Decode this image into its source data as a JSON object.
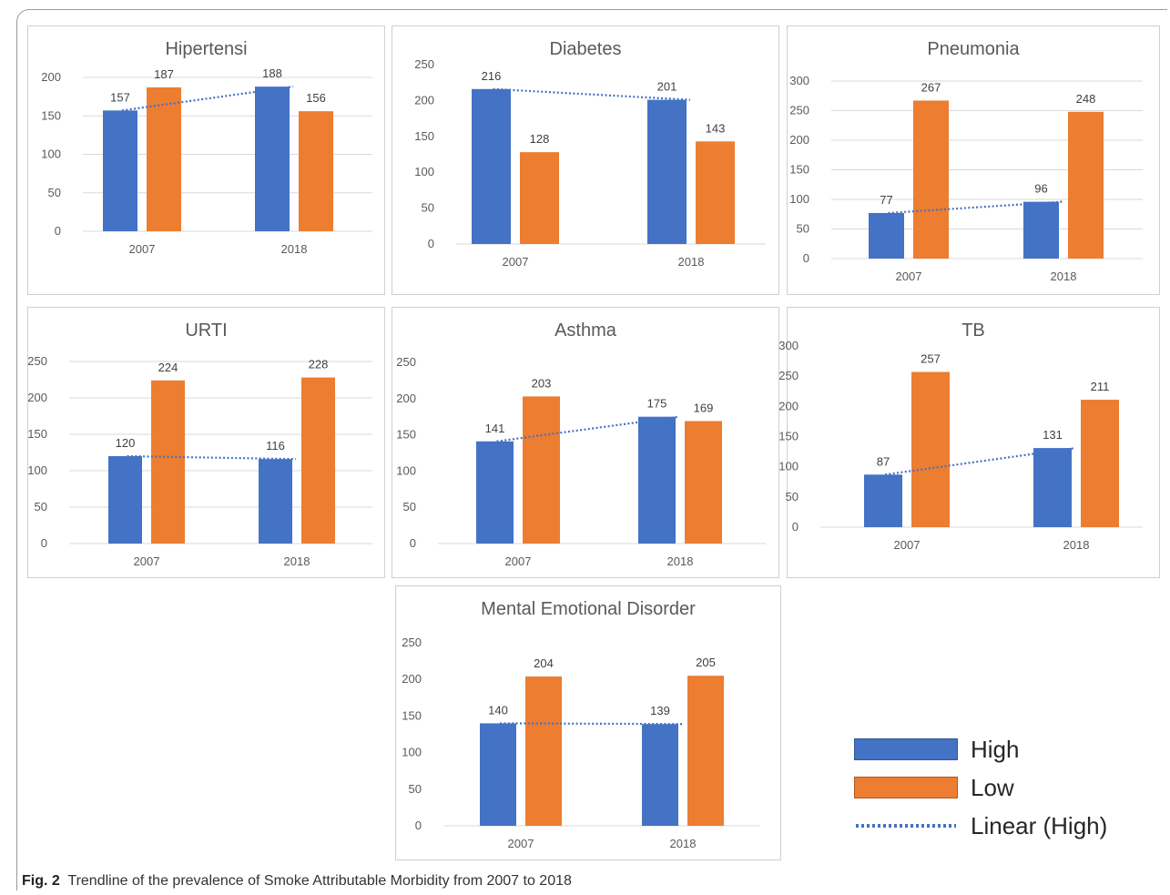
{
  "caption": {
    "label": "Fig. 2",
    "text": "Trendline of the prevalence of Smoke Attributable Morbidity from 2007 to 2018"
  },
  "colors": {
    "high": "#4472c4",
    "low": "#ed7d31",
    "trend": "#4472c4",
    "grid": "#d9d9d9",
    "text": "#595959"
  },
  "legend": {
    "placement": "bottom-right",
    "items": [
      {
        "label": "High",
        "type": "bar",
        "color": "#4472c4"
      },
      {
        "label": "Low",
        "type": "bar",
        "color": "#ed7d31"
      },
      {
        "label": "Linear (High)",
        "type": "dotted-line",
        "color": "#4472c4"
      }
    ]
  },
  "chart_data": [
    {
      "type": "bar",
      "title": "Hipertensi",
      "categories": [
        "2007",
        "2018"
      ],
      "ylim": [
        0,
        200
      ],
      "yticks": [
        0,
        50,
        100,
        150,
        200
      ],
      "grid": true,
      "series": [
        {
          "name": "High",
          "values": [
            157,
            188
          ]
        },
        {
          "name": "Low",
          "values": [
            187,
            156
          ]
        }
      ],
      "trendline": "Linear (High)"
    },
    {
      "type": "bar",
      "title": "Diabetes",
      "categories": [
        "2007",
        "2018"
      ],
      "ylim": [
        0,
        250
      ],
      "yticks": [
        0,
        50,
        100,
        150,
        200,
        250
      ],
      "grid": false,
      "series": [
        {
          "name": "High",
          "values": [
            216,
            201
          ]
        },
        {
          "name": "Low",
          "values": [
            128,
            143
          ]
        }
      ],
      "trendline": "Linear (High)"
    },
    {
      "type": "bar",
      "title": "Pneumonia",
      "categories": [
        "2007",
        "2018"
      ],
      "ylim": [
        0,
        300
      ],
      "yticks": [
        0,
        50,
        100,
        150,
        200,
        250,
        300
      ],
      "grid": true,
      "series": [
        {
          "name": "High",
          "values": [
            77,
            96
          ]
        },
        {
          "name": "Low",
          "values": [
            267,
            248
          ]
        }
      ],
      "trendline": "Linear (High)"
    },
    {
      "type": "bar",
      "title": "URTI",
      "categories": [
        "2007",
        "2018"
      ],
      "ylim": [
        0,
        250
      ],
      "yticks": [
        0,
        50,
        100,
        150,
        200,
        250
      ],
      "grid": true,
      "series": [
        {
          "name": "High",
          "values": [
            120,
            116
          ]
        },
        {
          "name": "Low",
          "values": [
            224,
            228
          ]
        }
      ],
      "trendline": "Linear (High)"
    },
    {
      "type": "bar",
      "title": "Asthma",
      "categories": [
        "2007",
        "2018"
      ],
      "ylim": [
        0,
        250
      ],
      "yticks": [
        0,
        50,
        100,
        150,
        200,
        250
      ],
      "grid": false,
      "series": [
        {
          "name": "High",
          "values": [
            141,
            175
          ]
        },
        {
          "name": "Low",
          "values": [
            203,
            169
          ]
        }
      ],
      "trendline": "Linear (High)"
    },
    {
      "type": "bar",
      "title": "TB",
      "categories": [
        "2007",
        "2018"
      ],
      "ylim": [
        0,
        300
      ],
      "yticks": [
        0,
        50,
        100,
        150,
        200,
        250,
        300
      ],
      "grid": false,
      "series": [
        {
          "name": "High",
          "values": [
            87,
            131
          ]
        },
        {
          "name": "Low",
          "values": [
            257,
            211
          ]
        }
      ],
      "trendline": "Linear (High)"
    },
    {
      "type": "bar",
      "title": "Mental Emotional Disorder",
      "categories": [
        "2007",
        "2018"
      ],
      "ylim": [
        0,
        250
      ],
      "yticks": [
        0,
        50,
        100,
        150,
        200,
        250
      ],
      "grid": false,
      "series": [
        {
          "name": "High",
          "values": [
            140,
            139
          ]
        },
        {
          "name": "Low",
          "values": [
            204,
            205
          ]
        }
      ],
      "trendline": "Linear (High)"
    }
  ]
}
